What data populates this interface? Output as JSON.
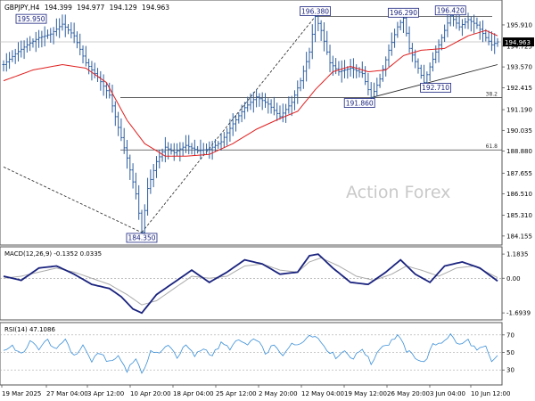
{
  "header": {
    "symbol": "GBPJPY,H4",
    "open": "194.399",
    "high": "194.977",
    "low": "194.129",
    "close": "194.963"
  },
  "watermark": "Action Forex",
  "colors": {
    "candle": "#2f5f9e",
    "ma": "#e02020",
    "macd_line": "#1a237e",
    "macd_signal": "#aaaaaa",
    "rsi": "#3a8fd8",
    "box_border": "#1a237e",
    "price_tag_bg": "#000000"
  },
  "chart_data": [
    {
      "type": "candlestick",
      "title": "GBPJPY,H4",
      "y_ticks": [
        "195.910",
        "194.725",
        "193.570",
        "192.415",
        "191.190",
        "190.035",
        "188.880",
        "187.655",
        "186.510",
        "185.310",
        "184.155"
      ],
      "ylim": [
        183.8,
        196.9
      ],
      "x_ticks": [
        "19 Mar 2025",
        "27 Mar 04:00",
        "3 Apr 12:00",
        "10 Apr 20:00",
        "18 Apr 04:00",
        "25 Apr 12:00",
        "2 May 20:00",
        "12 May 04:00",
        "19 May 12:00",
        "26 May 20:00",
        "3 Jun 04:00",
        "10 Jun 12:00"
      ],
      "current_price": "194.963",
      "price_path": [
        [
          0,
          193.7
        ],
        [
          4,
          194.3
        ],
        [
          8,
          194.8
        ],
        [
          12,
          195.2
        ],
        [
          16,
          195.4
        ],
        [
          20,
          195.95
        ],
        [
          24,
          195.3
        ],
        [
          28,
          193.8
        ],
        [
          32,
          193.0
        ],
        [
          36,
          192.0
        ],
        [
          39,
          190.2
        ],
        [
          42,
          188.5
        ],
        [
          45,
          186.5
        ],
        [
          47,
          184.35
        ],
        [
          49,
          186.8
        ],
        [
          52,
          188.3
        ],
        [
          55,
          189.1
        ],
        [
          58,
          188.8
        ],
        [
          62,
          189.2
        ],
        [
          66,
          188.9
        ],
        [
          70,
          189.0
        ],
        [
          74,
          189.4
        ],
        [
          78,
          190.4
        ],
        [
          82,
          191.3
        ],
        [
          86,
          191.9
        ],
        [
          90,
          191.5
        ],
        [
          94,
          190.8
        ],
        [
          98,
          191.6
        ],
        [
          101,
          192.8
        ],
        [
          104,
          194.4
        ],
        [
          106,
          196.38
        ],
        [
          108,
          195.6
        ],
        [
          111,
          193.8
        ],
        [
          114,
          193.3
        ],
        [
          118,
          193.5
        ],
        [
          122,
          193.2
        ],
        [
          125,
          191.86
        ],
        [
          128,
          192.9
        ],
        [
          131,
          194.5
        ],
        [
          134,
          195.8
        ],
        [
          136,
          196.29
        ],
        [
          138,
          194.6
        ],
        [
          141,
          193.5
        ],
        [
          143,
          192.71
        ],
        [
          146,
          194.0
        ],
        [
          149,
          195.2
        ],
        [
          152,
          196.42
        ],
        [
          155,
          195.8
        ],
        [
          158,
          196.2
        ],
        [
          161,
          195.9
        ],
        [
          164,
          195.2
        ],
        [
          166,
          194.8
        ],
        [
          168,
          194.963
        ]
      ],
      "moving_average": [
        [
          0,
          192.8
        ],
        [
          10,
          193.4
        ],
        [
          20,
          193.7
        ],
        [
          28,
          193.5
        ],
        [
          35,
          192.7
        ],
        [
          42,
          190.6
        ],
        [
          48,
          189.3
        ],
        [
          55,
          188.6
        ],
        [
          62,
          188.6
        ],
        [
          70,
          188.7
        ],
        [
          78,
          189.3
        ],
        [
          86,
          190.1
        ],
        [
          94,
          190.7
        ],
        [
          100,
          191.1
        ],
        [
          106,
          192.3
        ],
        [
          112,
          193.3
        ],
        [
          118,
          193.6
        ],
        [
          124,
          193.3
        ],
        [
          130,
          193.4
        ],
        [
          136,
          194.2
        ],
        [
          142,
          194.5
        ],
        [
          150,
          194.6
        ],
        [
          158,
          195.3
        ],
        [
          164,
          195.6
        ],
        [
          168,
          195.3
        ]
      ],
      "swing_labels": [
        {
          "index": 20,
          "value": 195.95,
          "label": "195.950"
        },
        {
          "index": 47,
          "value": 184.35,
          "label": "184.350"
        },
        {
          "index": 106,
          "value": 196.38,
          "label": "196.380"
        },
        {
          "index": 125,
          "value": 191.86,
          "label": "191.860"
        },
        {
          "index": 136,
          "value": 196.29,
          "label": "196.290"
        },
        {
          "index": 143,
          "value": 192.71,
          "label": "192.710"
        },
        {
          "index": 152,
          "value": 196.42,
          "label": "196.420"
        }
      ],
      "fib_levels": [
        {
          "label": "38.2",
          "value": 191.86
        },
        {
          "label": "61.8",
          "value": 188.95
        }
      ],
      "trendlines": [
        {
          "style": "dashed",
          "from": [
            0,
            188.0
          ],
          "to": [
            47,
            184.35
          ]
        },
        {
          "style": "dashed",
          "from": [
            47,
            184.35
          ],
          "to": [
            106,
            196.38
          ]
        },
        {
          "style": "solid",
          "from": [
            125,
            191.86
          ],
          "to": [
            168,
            193.7
          ]
        }
      ],
      "resistance": {
        "value": 196.38,
        "from_index": 106
      }
    },
    {
      "type": "line",
      "title": "MACD(12,26,9) -0.1352 0.0335",
      "y_ticks": [
        "1.1835",
        "0.00",
        "-1.6939"
      ],
      "ylim": [
        -1.95,
        1.45
      ],
      "macd": [
        [
          0,
          0.1
        ],
        [
          6,
          -0.1
        ],
        [
          12,
          0.5
        ],
        [
          18,
          0.6
        ],
        [
          24,
          0.2
        ],
        [
          30,
          -0.3
        ],
        [
          36,
          -0.5
        ],
        [
          40,
          -0.9
        ],
        [
          44,
          -1.5
        ],
        [
          47,
          -1.7
        ],
        [
          52,
          -0.8
        ],
        [
          58,
          -0.2
        ],
        [
          64,
          0.4
        ],
        [
          70,
          -0.2
        ],
        [
          76,
          0.3
        ],
        [
          82,
          0.9
        ],
        [
          88,
          0.7
        ],
        [
          94,
          0.2
        ],
        [
          100,
          0.3
        ],
        [
          104,
          1.1
        ],
        [
          107,
          1.18
        ],
        [
          112,
          0.5
        ],
        [
          118,
          -0.2
        ],
        [
          124,
          -0.3
        ],
        [
          130,
          0.3
        ],
        [
          135,
          0.9
        ],
        [
          140,
          0.2
        ],
        [
          145,
          -0.2
        ],
        [
          150,
          0.6
        ],
        [
          156,
          0.8
        ],
        [
          162,
          0.5
        ],
        [
          168,
          -0.135
        ]
      ],
      "signal": [
        [
          0,
          0.0
        ],
        [
          6,
          0.1
        ],
        [
          12,
          0.3
        ],
        [
          18,
          0.5
        ],
        [
          24,
          0.3
        ],
        [
          30,
          0.0
        ],
        [
          36,
          -0.3
        ],
        [
          42,
          -0.8
        ],
        [
          47,
          -1.3
        ],
        [
          52,
          -1.1
        ],
        [
          58,
          -0.5
        ],
        [
          64,
          0.1
        ],
        [
          70,
          0.0
        ],
        [
          76,
          0.1
        ],
        [
          82,
          0.6
        ],
        [
          88,
          0.7
        ],
        [
          94,
          0.4
        ],
        [
          100,
          0.3
        ],
        [
          104,
          0.8
        ],
        [
          108,
          1.0
        ],
        [
          114,
          0.6
        ],
        [
          120,
          0.1
        ],
        [
          126,
          -0.1
        ],
        [
          132,
          0.2
        ],
        [
          137,
          0.6
        ],
        [
          142,
          0.4
        ],
        [
          148,
          0.1
        ],
        [
          154,
          0.5
        ],
        [
          160,
          0.6
        ],
        [
          168,
          0.034
        ]
      ]
    },
    {
      "type": "line",
      "title": "RSI(14) 47.1086",
      "y_ticks": [
        "70",
        "50",
        "30"
      ],
      "ylim": [
        15,
        82
      ],
      "rsi": [
        [
          0,
          52
        ],
        [
          3,
          58
        ],
        [
          6,
          47
        ],
        [
          9,
          62
        ],
        [
          12,
          55
        ],
        [
          15,
          64
        ],
        [
          18,
          52
        ],
        [
          21,
          66
        ],
        [
          24,
          45
        ],
        [
          27,
          58
        ],
        [
          30,
          40
        ],
        [
          33,
          50
        ],
        [
          36,
          38
        ],
        [
          39,
          46
        ],
        [
          42,
          30
        ],
        [
          45,
          44
        ],
        [
          47,
          24
        ],
        [
          50,
          52
        ],
        [
          53,
          48
        ],
        [
          56,
          60
        ],
        [
          59,
          45
        ],
        [
          62,
          58
        ],
        [
          65,
          46
        ],
        [
          68,
          55
        ],
        [
          71,
          47
        ],
        [
          74,
          60
        ],
        [
          77,
          55
        ],
        [
          80,
          64
        ],
        [
          83,
          58
        ],
        [
          86,
          66
        ],
        [
          89,
          49
        ],
        [
          92,
          58
        ],
        [
          95,
          45
        ],
        [
          98,
          62
        ],
        [
          101,
          58
        ],
        [
          104,
          72
        ],
        [
          107,
          66
        ],
        [
          110,
          54
        ],
        [
          113,
          45
        ],
        [
          116,
          52
        ],
        [
          119,
          43
        ],
        [
          122,
          55
        ],
        [
          125,
          37
        ],
        [
          128,
          56
        ],
        [
          131,
          60
        ],
        [
          134,
          70
        ],
        [
          137,
          52
        ],
        [
          140,
          45
        ],
        [
          143,
          38
        ],
        [
          146,
          58
        ],
        [
          149,
          62
        ],
        [
          152,
          70
        ],
        [
          155,
          58
        ],
        [
          158,
          64
        ],
        [
          161,
          52
        ],
        [
          164,
          56
        ],
        [
          166,
          38
        ],
        [
          168,
          47.1
        ]
      ]
    }
  ]
}
